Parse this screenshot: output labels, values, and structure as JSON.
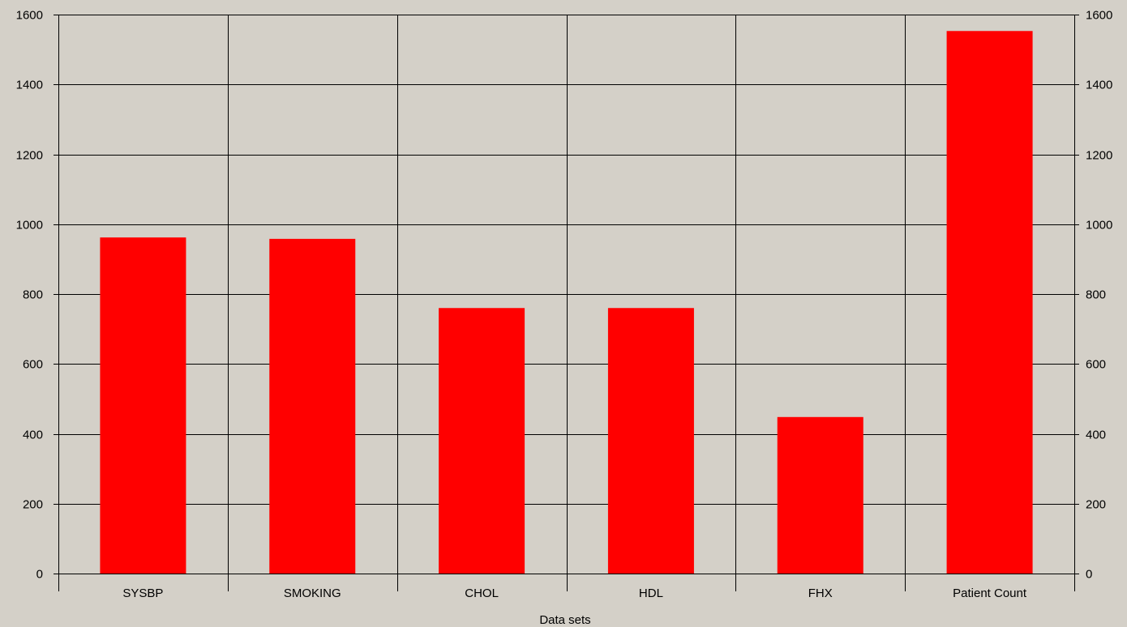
{
  "chart_data": {
    "type": "bar",
    "title": "",
    "xlabel": "Data sets",
    "ylabel": "",
    "categories": [
      "SYSBP",
      "SMOKING",
      "CHOL",
      "HDL",
      "FHX",
      "Patient Count"
    ],
    "series": [
      {
        "values": [
          962,
          958,
          760,
          760,
          448,
          1553
        ]
      }
    ],
    "ylim": [
      0,
      1600
    ],
    "yticks": [
      0,
      200,
      400,
      600,
      800,
      1000,
      1200,
      1400,
      1600
    ],
    "ytick_labels": [
      "0",
      "200",
      "400",
      "600",
      "800",
      "1000",
      "1200",
      "1400",
      "1600"
    ],
    "y_axis_sides": [
      "left",
      "right"
    ],
    "grid": true,
    "legend": "none",
    "colors": {
      "background": "#d4d0c8",
      "bar": "#ff0000",
      "grid": "#000000",
      "text": "#000000"
    }
  }
}
